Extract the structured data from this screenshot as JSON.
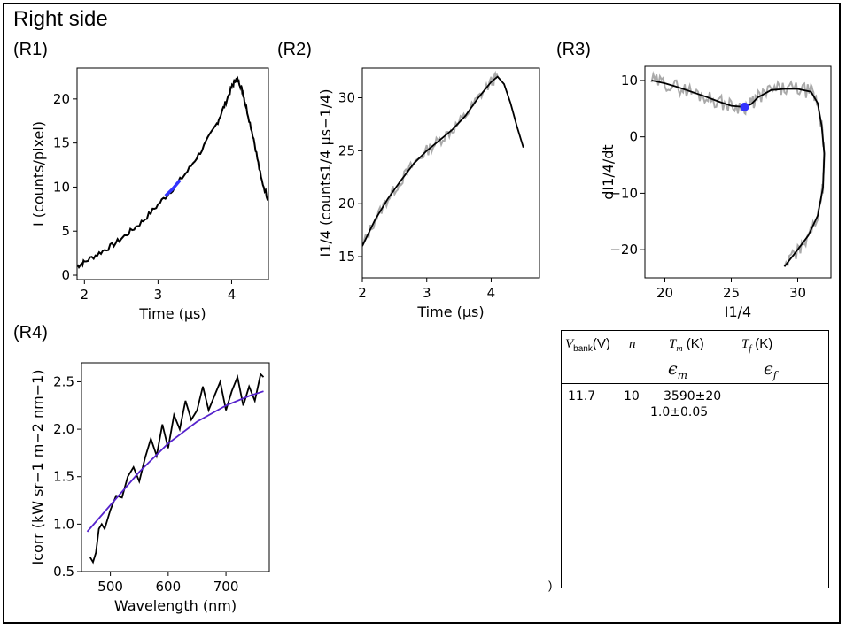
{
  "page": {
    "title": "Right side",
    "stray_mark": ")"
  },
  "panels": {
    "r1": "(R1)",
    "r2": "(R2)",
    "r3": "(R3)",
    "r4": "(R4)"
  },
  "table": {
    "headers": {
      "vbank_main": "V",
      "vbank_sub": "bank",
      "vbank_unit": "(V)",
      "n": "n",
      "tm_main": "T",
      "tm_sub": "m",
      "tm_unit": " (K)",
      "tf_main": "T",
      "tf_sub": "f",
      "tf_unit": " (K)",
      "em_main": "ϵ",
      "em_sub": "m",
      "ef_main": "ϵ",
      "ef_sub": "f"
    },
    "row": {
      "vbank": "11.7",
      "n": "10",
      "tm": "3590±20",
      "em": "1.0±0.05"
    }
  },
  "chart_data": [
    {
      "id": "R1",
      "type": "line",
      "xlabel": "Time (μs)",
      "ylabel": "I (counts/pixel)",
      "xlim": [
        1.9,
        4.5
      ],
      "ylim": [
        -0.5,
        23.5
      ],
      "xticks": [
        2,
        3,
        4
      ],
      "yticks": [
        0,
        5,
        10,
        15,
        20
      ],
      "colors": {
        "data": "#000000",
        "highlight": "#3333ff"
      },
      "series": [
        {
          "x": [
            1.9,
            2.0,
            2.2,
            2.4,
            2.6,
            2.8,
            3.0,
            3.2,
            3.4,
            3.6,
            3.8,
            3.9,
            4.0,
            4.05,
            4.1,
            4.15,
            4.2,
            4.3,
            4.4,
            4.5
          ],
          "y": [
            1.0,
            1.5,
            2.5,
            3.5,
            4.8,
            6.2,
            8.0,
            9.8,
            11.8,
            14.3,
            17.2,
            19.2,
            21.3,
            22.2,
            22.0,
            20.8,
            19.0,
            15.5,
            11.0,
            8.5
          ]
        },
        {
          "x": [
            3.1,
            3.2,
            3.3
          ],
          "y": [
            9.0,
            9.8,
            10.8
          ]
        }
      ]
    },
    {
      "id": "R2",
      "type": "line",
      "xlabel": "Time (μs)",
      "ylabel": "I1/4 (counts1/4 μs−1/4)",
      "xlim": [
        2.0,
        4.75
      ],
      "ylim": [
        13.0,
        32.8
      ],
      "xticks": [
        2,
        3,
        4
      ],
      "yticks": [
        15,
        20,
        25,
        30
      ],
      "colors": {
        "raw": "#aaaaaa",
        "fit": "#000000"
      },
      "series": [
        {
          "x": [
            2.0,
            2.2,
            2.4,
            2.6,
            2.8,
            3.0,
            3.2,
            3.4,
            3.6,
            3.8,
            4.0,
            4.1,
            4.2,
            4.3,
            4.4,
            4.5
          ],
          "y": [
            16.0,
            18.5,
            20.5,
            22.2,
            23.8,
            25.0,
            26.0,
            27.0,
            28.3,
            30.0,
            31.5,
            32.0,
            31.3,
            29.5,
            27.3,
            25.3
          ]
        }
      ]
    },
    {
      "id": "R3",
      "type": "line",
      "xlabel": "I1/4",
      "ylabel": "dI1/4/dt",
      "xlim": [
        18.5,
        32.5
      ],
      "ylim": [
        -25.0,
        12.5
      ],
      "xticks": [
        20,
        25,
        30
      ],
      "yticks": [
        -20,
        -10,
        0,
        10
      ],
      "colors": {
        "raw": "#aaaaaa",
        "fit": "#000000",
        "marker": "#3333ff"
      },
      "series": [
        {
          "x": [
            19.0,
            20.0,
            21.0,
            22.0,
            23.0,
            24.0,
            25.0,
            26.0,
            26.5,
            27.0,
            28.0,
            29.0,
            30.0,
            31.0,
            31.5,
            31.8,
            32.0,
            31.9,
            31.5,
            30.8,
            30.0,
            29.0
          ],
          "y": [
            10.0,
            9.5,
            8.8,
            8.0,
            7.2,
            6.3,
            5.5,
            5.3,
            5.8,
            7.0,
            8.3,
            8.5,
            8.5,
            8.0,
            6.0,
            2.0,
            -3.0,
            -9.0,
            -14.0,
            -17.5,
            -20.0,
            -23.0
          ]
        }
      ],
      "marker": {
        "x": 26.0,
        "y": 5.3
      }
    },
    {
      "id": "R4",
      "type": "line",
      "xlabel": "Wavelength (nm)",
      "ylabel": "Icorr (kW sr−1 m−2 nm−1)",
      "xlim": [
        450,
        775
      ],
      "ylim": [
        0.5,
        2.7
      ],
      "xticks": [
        500,
        600,
        700
      ],
      "yticks": [
        0.5,
        1.0,
        1.5,
        2.0,
        2.5
      ],
      "colors": {
        "data": "#000000",
        "fit": "#5522cc"
      },
      "series": [
        {
          "x": [
            465,
            470,
            475,
            480,
            485,
            490,
            500,
            510,
            520,
            530,
            540,
            550,
            560,
            570,
            580,
            590,
            600,
            610,
            620,
            630,
            640,
            650,
            660,
            670,
            680,
            690,
            700,
            710,
            720,
            730,
            740,
            750,
            760,
            765
          ],
          "y": [
            0.65,
            0.6,
            0.7,
            0.95,
            1.0,
            0.95,
            1.15,
            1.3,
            1.28,
            1.5,
            1.6,
            1.45,
            1.7,
            1.9,
            1.72,
            2.05,
            1.8,
            2.15,
            2.0,
            2.3,
            2.1,
            2.2,
            2.45,
            2.2,
            2.35,
            2.5,
            2.2,
            2.4,
            2.55,
            2.25,
            2.45,
            2.3,
            2.58,
            2.55
          ]
        },
        {
          "x": [
            460,
            500,
            550,
            600,
            650,
            700,
            740,
            765
          ],
          "y": [
            0.92,
            1.2,
            1.55,
            1.85,
            2.08,
            2.25,
            2.35,
            2.4
          ]
        }
      ]
    }
  ]
}
